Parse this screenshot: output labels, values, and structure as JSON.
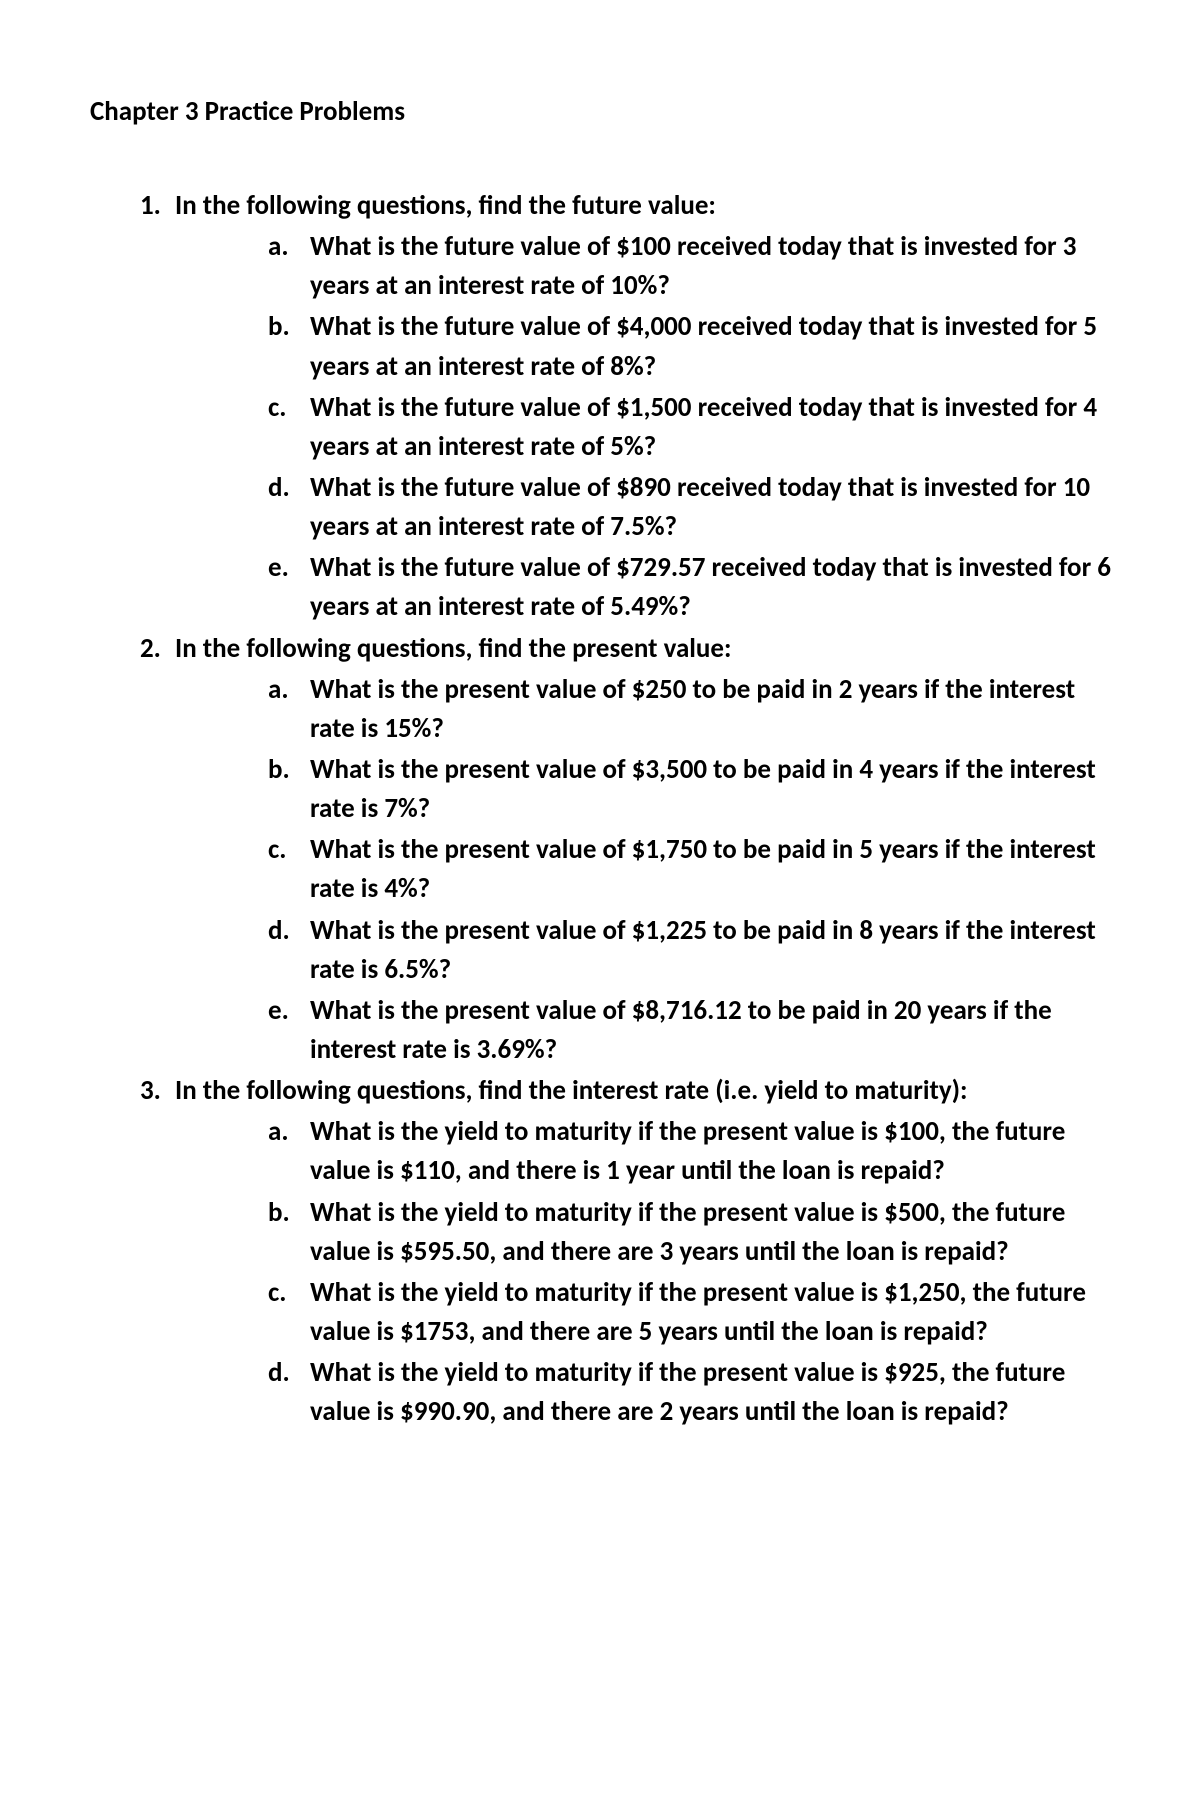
{
  "title": "Chapter 3 Practice Problems",
  "problems": [
    {
      "number": "1.",
      "prompt": "In the following questions, find the future value:",
      "sub": [
        {
          "letter": "a.",
          "text": "What is the future value of $100 received today that is invested for 3 years at an interest rate of 10%?"
        },
        {
          "letter": "b.",
          "text": "What is the future value of $4,000 received today that is invested for 5 years at an interest rate of 8%?"
        },
        {
          "letter": "c.",
          "text": "What is the future value of $1,500 received today that is invested for 4 years at an interest rate of 5%?"
        },
        {
          "letter": "d.",
          "text": "What is the future value of $890 received today that is invested for 10 years at an interest rate of 7.5%?"
        },
        {
          "letter": "e.",
          "text": "What is the future value of $729.57 received today that is invested for 6 years at an interest rate of 5.49%?"
        }
      ]
    },
    {
      "number": "2.",
      "prompt": "In the following questions, find the present value:",
      "sub": [
        {
          "letter": "a.",
          "text": "What is the present value of $250 to be paid in 2 years if the interest rate is 15%?"
        },
        {
          "letter": "b.",
          "text": "What is the present value of $3,500 to be paid in 4 years if the interest rate is 7%?"
        },
        {
          "letter": "c.",
          "text": "What is the present value of $1,750 to be paid in 5 years if the interest rate is 4%?"
        },
        {
          "letter": "d.",
          "text": "What is the present value of $1,225 to be paid in 8 years if the interest rate is 6.5%?"
        },
        {
          "letter": "e.",
          "text": "What is the present value of $8,716.12 to be paid in 20 years if the interest rate is 3.69%?"
        }
      ]
    },
    {
      "number": "3.",
      "prompt": "In the following questions, find the interest rate (i.e. yield to maturity):",
      "sub": [
        {
          "letter": "a.",
          "text": "What is the yield to maturity if the present value is $100, the future value is $110, and there is 1 year until the loan is repaid?"
        },
        {
          "letter": "b.",
          "text": "What is the yield to maturity if the present value is $500, the future value is $595.50, and there are 3 years until the loan is repaid?"
        },
        {
          "letter": "c.",
          "text": "What is the yield to maturity if the present value is $1,250, the future value is $1753, and there are 5 years until the loan is repaid?"
        },
        {
          "letter": "d.",
          "text": "What is the yield to maturity if the present value is $925, the future value is $990.90, and there are 2 years until the loan is repaid?"
        }
      ]
    }
  ]
}
